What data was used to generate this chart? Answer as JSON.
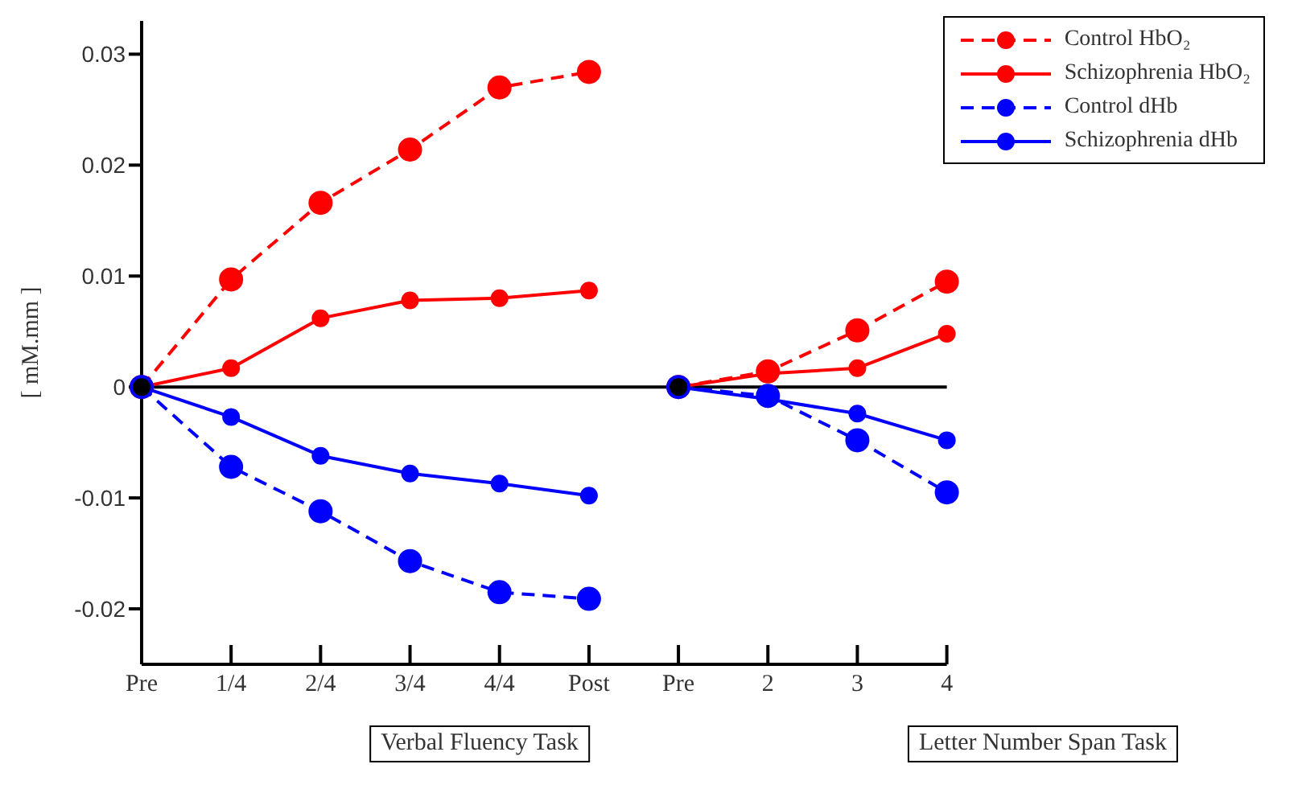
{
  "chart_data": {
    "type": "line",
    "ylabel": "[ mM.mm ]",
    "categories": [
      "Pre",
      "1/4",
      "2/4",
      "3/4",
      "4/4",
      "Post",
      "Pre",
      "2",
      "3",
      "4"
    ],
    "series": [
      {
        "name": "Control HbO₂",
        "color": "#ff0000",
        "line_style": "dashed",
        "values": [
          0,
          0.0097,
          0.0166,
          0.0214,
          0.027,
          0.0284,
          null,
          null,
          null,
          null
        ]
      },
      {
        "name": "Schizophrenia HbO₂",
        "color": "#ff0000",
        "line_style": "solid",
        "values": [
          0,
          0.0017,
          0.0062,
          0.0078,
          0.008,
          0.0087,
          null,
          null,
          null,
          null
        ]
      },
      {
        "name": "Control dHb",
        "color": "#0000ff",
        "line_style": "dashed",
        "values": [
          0,
          -0.0072,
          -0.0112,
          -0.0157,
          -0.0185,
          -0.0191,
          null,
          null,
          null,
          null
        ]
      },
      {
        "name": "Schizophrenia dHb",
        "color": "#0000ff",
        "line_style": "solid",
        "values": [
          0,
          -0.0027,
          -0.0062,
          -0.0078,
          -0.0087,
          -0.0098,
          null,
          null,
          null,
          null
        ]
      },
      {
        "color": "#ff0000",
        "line_style": "dashed",
        "values": [
          null,
          null,
          null,
          null,
          null,
          null,
          0,
          0.0014,
          0.0051,
          0.0095
        ]
      },
      {
        "color": "#ff0000",
        "line_style": "solid",
        "values": [
          null,
          null,
          null,
          null,
          null,
          null,
          0,
          0.0012,
          0.0017,
          0.0048
        ]
      },
      {
        "color": "#0000ff",
        "line_style": "dashed",
        "values": [
          null,
          null,
          null,
          null,
          null,
          null,
          0,
          -0.0008,
          -0.0048,
          -0.0095
        ]
      },
      {
        "color": "#0000ff",
        "line_style": "solid",
        "values": [
          null,
          null,
          null,
          null,
          null,
          null,
          0,
          -0.0011,
          -0.0024,
          -0.0048
        ]
      },
      {
        "type": "scatter",
        "color": "#000000",
        "values": [
          0,
          null,
          null,
          null,
          null,
          null,
          0,
          null,
          null,
          null
        ]
      }
    ],
    "ylim": [
      -0.025,
      0.033
    ],
    "yticks": [
      -0.02,
      -0.01,
      0,
      0.01,
      0.02,
      0.03
    ],
    "ref_lines": [
      {
        "axis": "y",
        "value": 0,
        "color": "#000000"
      }
    ],
    "annotations": [
      "Verbal Fluency Task",
      "Letter Number Span Task"
    ],
    "marker": "circle",
    "grid": false,
    "legend": "top right"
  }
}
